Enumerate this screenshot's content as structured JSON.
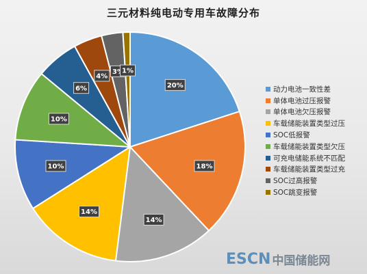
{
  "chart_data": {
    "type": "pie",
    "title": "三元材料纯电动专用车故障分布",
    "legend_position": "right",
    "slices": [
      {
        "label": "动力电池一致性差",
        "value": 20,
        "value_label": "20%",
        "color": "#5b9bd5"
      },
      {
        "label": "单体电池过压报警",
        "value": 18,
        "value_label": "18%",
        "color": "#ed7d31"
      },
      {
        "label": "单体电池欠压报警",
        "value": 14,
        "value_label": "14%",
        "color": "#a5a5a5"
      },
      {
        "label": "车载储能装置类型过压",
        "value": 14,
        "value_label": "14%",
        "color": "#ffc000"
      },
      {
        "label": "SOC低报警",
        "value": 10,
        "value_label": "10%",
        "color": "#4472c4"
      },
      {
        "label": "车载储能装置类型欠压",
        "value": 10,
        "value_label": "10%",
        "color": "#70ad47"
      },
      {
        "label": "可充电储能系统不匹配",
        "value": 6,
        "value_label": "6%",
        "color": "#255e91"
      },
      {
        "label": "车载储能装置类型过充",
        "value": 4,
        "value_label": "4%",
        "color": "#9e480e"
      },
      {
        "label": "SOC过高报警",
        "value": 3,
        "value_label": "3%",
        "color": "#636363"
      },
      {
        "label": "SOC跳变报警",
        "value": 1,
        "value_label": "1%",
        "color": "#997300"
      }
    ]
  },
  "watermark": {
    "brand": "ESCN",
    "text": "中国储能网"
  }
}
